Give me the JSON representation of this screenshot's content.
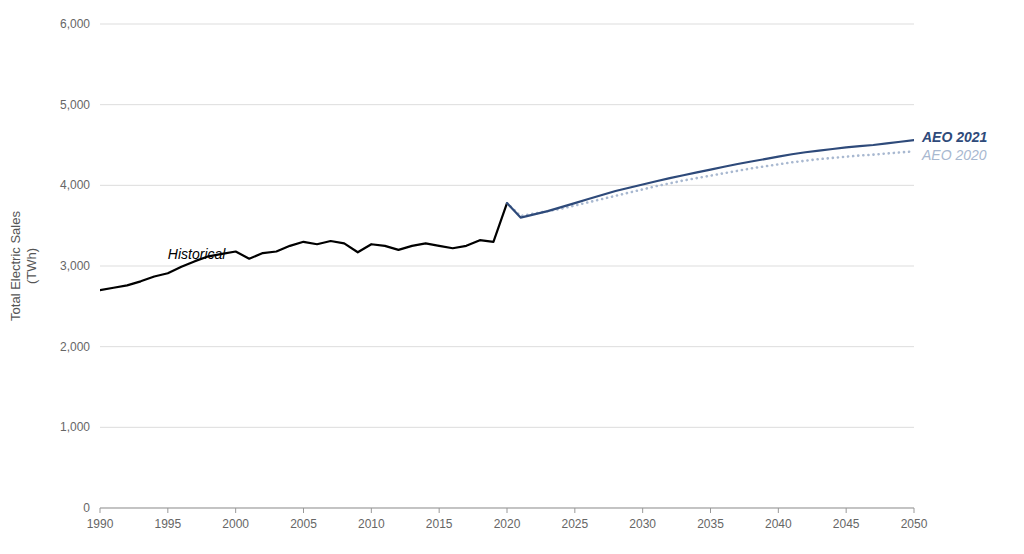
{
  "chart_data": {
    "type": "line",
    "y_label": "Total Electric Sales\n(TWh)",
    "x": [
      1990,
      1991,
      1992,
      1993,
      1994,
      1995,
      1996,
      1997,
      1998,
      1999,
      2000,
      2001,
      2002,
      2003,
      2004,
      2005,
      2006,
      2007,
      2008,
      2009,
      2010,
      2011,
      2012,
      2013,
      2014,
      2015,
      2016,
      2017,
      2018,
      2019,
      2020,
      2021,
      2022,
      2023,
      2024,
      2025,
      2026,
      2027,
      2028,
      2029,
      2030,
      2031,
      2032,
      2033,
      2034,
      2035,
      2036,
      2037,
      2038,
      2039,
      2040,
      2041,
      2042,
      2043,
      2044,
      2045,
      2046,
      2047,
      2048,
      2049,
      2050
    ],
    "series": [
      {
        "name": "Historical",
        "color": "#000000",
        "line_style": "solid",
        "values": [
          2700,
          2730,
          2760,
          2810,
          2870,
          2910,
          2990,
          3060,
          3120,
          3150,
          3180,
          3090,
          3160,
          3180,
          3250,
          3300,
          3270,
          3310,
          3280,
          3170,
          3270,
          3250,
          3200,
          3250,
          3280,
          3250,
          3220,
          3250,
          3320,
          3300,
          3780,
          null,
          null,
          null,
          null,
          null,
          null,
          null,
          null,
          null,
          null,
          null,
          null,
          null,
          null,
          null,
          null,
          null,
          null,
          null,
          null,
          null,
          null,
          null,
          null,
          null,
          null,
          null,
          null,
          null,
          null
        ]
      },
      {
        "name": "AEO 2020",
        "color": "#A8B8D0",
        "line_style": "dotted",
        "values": [
          null,
          null,
          null,
          null,
          null,
          null,
          null,
          null,
          null,
          null,
          null,
          null,
          null,
          null,
          null,
          null,
          null,
          null,
          null,
          null,
          null,
          null,
          null,
          null,
          null,
          null,
          null,
          null,
          null,
          null,
          3780,
          3620,
          3650,
          3680,
          3710,
          3750,
          3790,
          3830,
          3870,
          3910,
          3950,
          3990,
          4025,
          4060,
          4090,
          4120,
          4150,
          4180,
          4210,
          4235,
          4260,
          4285,
          4305,
          4325,
          4340,
          4355,
          4370,
          4380,
          4395,
          4408,
          4420
        ]
      },
      {
        "name": "AEO 2021",
        "color": "#2E4A7A",
        "line_style": "solid",
        "values": [
          null,
          null,
          null,
          null,
          null,
          null,
          null,
          null,
          null,
          null,
          null,
          null,
          null,
          null,
          null,
          null,
          null,
          null,
          null,
          null,
          null,
          null,
          null,
          null,
          null,
          null,
          null,
          null,
          null,
          null,
          3780,
          3600,
          3640,
          3680,
          3730,
          3780,
          3830,
          3880,
          3930,
          3970,
          4010,
          4050,
          4090,
          4125,
          4160,
          4195,
          4230,
          4265,
          4295,
          4325,
          4355,
          4385,
          4410,
          4430,
          4450,
          4470,
          4485,
          4500,
          4520,
          4540,
          4560
        ]
      }
    ],
    "xlim": [
      1990,
      2050
    ],
    "ylim": [
      0,
      6000
    ],
    "xticks": [
      1990,
      1995,
      2000,
      2005,
      2010,
      2015,
      2020,
      2025,
      2030,
      2035,
      2040,
      2045,
      2050
    ],
    "yticks": [
      0,
      {
        "value": 1000,
        "label": "1,000"
      },
      {
        "value": 2000,
        "label": "2,000"
      },
      {
        "value": 3000,
        "label": "3,000"
      },
      {
        "value": 4000,
        "label": "4,000"
      },
      {
        "value": 5000,
        "label": "5,000"
      },
      {
        "value": 6000,
        "label": "6,000"
      }
    ],
    "grid": true
  }
}
